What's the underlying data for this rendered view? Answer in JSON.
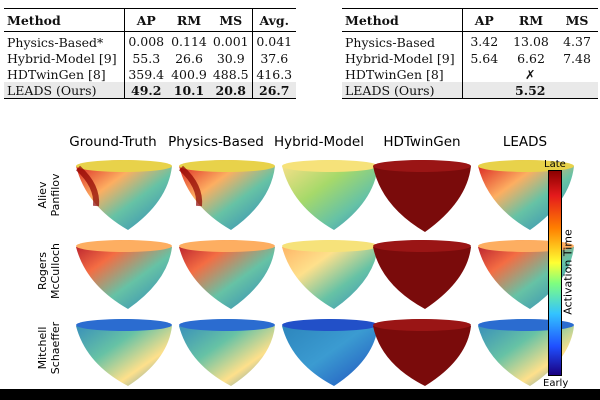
{
  "table1": {
    "headers": [
      "Method",
      "AP",
      "RM",
      "MS",
      "Avg."
    ],
    "rows": [
      {
        "method": "Physics-Based*",
        "ap": "0.008",
        "rm": "0.114",
        "ms": "0.001",
        "avg": "0.041"
      },
      {
        "method": "Hybrid-Model [9]",
        "ap": "55.3",
        "rm": "26.6",
        "ms": "30.9",
        "avg": "37.6"
      },
      {
        "method": "HDTwinGen [8]",
        "ap": "359.4",
        "rm": "400.9",
        "ms": "488.5",
        "avg": "416.3"
      },
      {
        "method": "LEADS (Ours)",
        "ap": "49.2",
        "rm": "10.1",
        "ms": "20.8",
        "avg": "26.7"
      }
    ]
  },
  "table2": {
    "headers": [
      "Method",
      "AP",
      "RM",
      "MS"
    ],
    "rows": [
      {
        "method": "Physics-Based",
        "ap": "3.42",
        "rm": "13.08",
        "ms": "4.37"
      },
      {
        "method": "Hybrid-Model [9]",
        "ap": "5.64",
        "rm": "6.62",
        "ms": "7.48"
      },
      {
        "method": "HDTwinGen [8]",
        "merged": "✗"
      },
      {
        "method": "LEADS (Ours)",
        "merged": "5.52"
      }
    ]
  },
  "figure": {
    "columns": [
      "Ground-Truth",
      "Physics-Based",
      "Hybrid-Model",
      "HDTwinGen",
      "LEADS"
    ],
    "rows": [
      {
        "line1": "Aliev",
        "line2": "Panfilov"
      },
      {
        "line1": "Rogers",
        "line2": "McCulloch"
      },
      {
        "line1": "Mitchell",
        "line2": "Schaeffer"
      }
    ],
    "colorbar": {
      "top": "Late",
      "bottom": "Early",
      "title": "Activation Time"
    }
  }
}
